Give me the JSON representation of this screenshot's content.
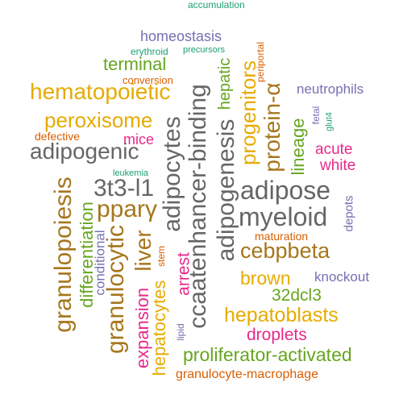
{
  "colors": {
    "teal": "#1B9E77",
    "orange": "#D95F02",
    "purple": "#7570B3",
    "magenta": "#E7298A",
    "green": "#66A61E",
    "gold": "#E6AB02",
    "brown": "#A6761D",
    "gray": "#666666"
  },
  "words": [
    {
      "id": "accumulation",
      "text": "accumulation",
      "color": "teal"
    },
    {
      "id": "homeostasis",
      "text": "homeostasis",
      "color": "purple"
    },
    {
      "id": "erythroid",
      "text": "erythroid",
      "color": "teal"
    },
    {
      "id": "precursors",
      "text": "precursors",
      "color": "teal"
    },
    {
      "id": "periportal",
      "text": "periportal",
      "color": "orange"
    },
    {
      "id": "terminal",
      "text": "terminal",
      "color": "green"
    },
    {
      "id": "conversion",
      "text": "conversion",
      "color": "orange"
    },
    {
      "id": "hematopoietic",
      "text": "hematopoietic",
      "color": "gold"
    },
    {
      "id": "neutrophils",
      "text": "neutrophils",
      "color": "purple"
    },
    {
      "id": "peroxisome",
      "text": "peroxisome",
      "color": "gold"
    },
    {
      "id": "defective",
      "text": "defective",
      "color": "orange"
    },
    {
      "id": "mice",
      "text": "mice",
      "color": "magenta"
    },
    {
      "id": "adipogenic",
      "text": "adipogenic",
      "color": "gray"
    },
    {
      "id": "fetal",
      "text": "fetal",
      "color": "purple"
    },
    {
      "id": "glut4",
      "text": "glut4",
      "color": "teal"
    },
    {
      "id": "acute",
      "text": "acute",
      "color": "magenta"
    },
    {
      "id": "white",
      "text": "white",
      "color": "magenta"
    },
    {
      "id": "leukemia",
      "text": "leukemia",
      "color": "teal"
    },
    {
      "id": "3t3-l1",
      "text": "3t3-l1",
      "color": "gray"
    },
    {
      "id": "adipose",
      "text": "adipose",
      "color": "gray"
    },
    {
      "id": "pparγ",
      "text": "pparγ",
      "color": "brown"
    },
    {
      "id": "myeloid",
      "text": "myeloid",
      "color": "gray"
    },
    {
      "id": "depots",
      "text": "depots",
      "color": "purple"
    },
    {
      "id": "maturation",
      "text": "maturation",
      "color": "orange"
    },
    {
      "id": "cebpbeta",
      "text": "cebpbeta",
      "color": "brown"
    },
    {
      "id": "stem",
      "text": "stem",
      "color": "orange"
    },
    {
      "id": "arrest",
      "text": "arrest",
      "color": "magenta"
    },
    {
      "id": "knockout",
      "text": "knockout",
      "color": "purple"
    },
    {
      "id": "brown",
      "text": "brown",
      "color": "gold"
    },
    {
      "id": "32dcl3",
      "text": "32dcl3",
      "color": "green"
    },
    {
      "id": "hepatoblasts",
      "text": "hepatoblasts",
      "color": "gold"
    },
    {
      "id": "droplets",
      "text": "droplets",
      "color": "magenta"
    },
    {
      "id": "proliferator-activated",
      "text": "proliferator-activated",
      "color": "green"
    },
    {
      "id": "granulocyte-macrophage",
      "text": "granulocyte-macrophage",
      "color": "orange"
    },
    {
      "id": "lipid",
      "text": "lipid",
      "color": "purple"
    },
    {
      "id": "granulopoiesis",
      "text": "granulopoiesis",
      "color": "brown"
    },
    {
      "id": "differentiation",
      "text": "differentiation",
      "color": "green"
    },
    {
      "id": "conditional",
      "text": "conditional",
      "color": "purple"
    },
    {
      "id": "granulocytic",
      "text": "granulocytic",
      "color": "brown"
    },
    {
      "id": "liver",
      "text": "liver",
      "color": "brown"
    },
    {
      "id": "expansion",
      "text": "expansion",
      "color": "magenta"
    },
    {
      "id": "hepatocytes",
      "text": "hepatocytes",
      "color": "gold"
    },
    {
      "id": "adipocytes",
      "text": "adipocytes",
      "color": "gray"
    },
    {
      "id": "ccaatenhancer-binding",
      "text": "ccaatenhancer-binding",
      "color": "gray"
    },
    {
      "id": "adipogenesis",
      "text": "adipogenesis",
      "color": "gray"
    },
    {
      "id": "hepatic",
      "text": "hepatic",
      "color": "green"
    },
    {
      "id": "progenitors",
      "text": "progenitors",
      "color": "gold"
    },
    {
      "id": "protein-α",
      "text": "protein-α",
      "color": "brown"
    },
    {
      "id": "lineage",
      "text": "lineage",
      "color": "green"
    }
  ]
}
